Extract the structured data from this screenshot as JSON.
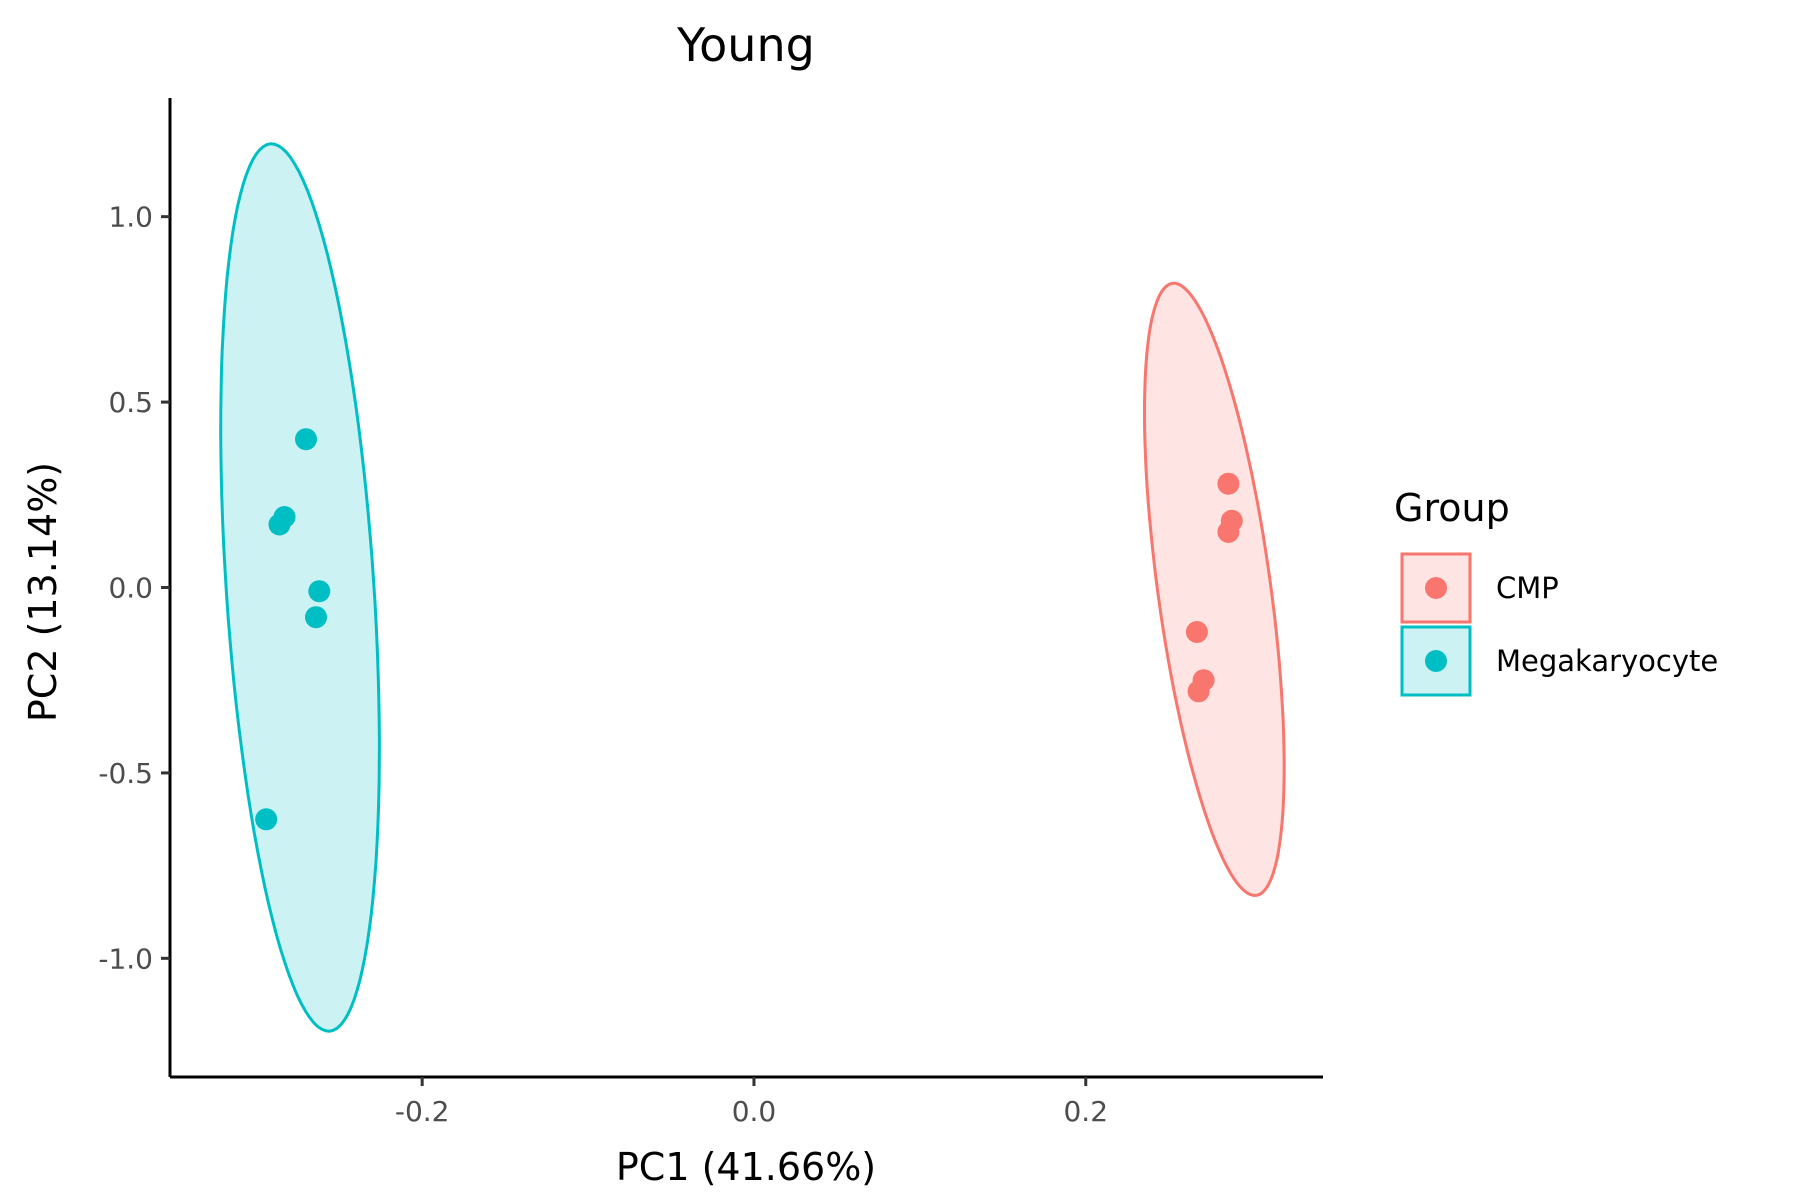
{
  "chart_data": {
    "type": "scatter",
    "title": "Young",
    "xlabel": "PC1 (41.66%)",
    "ylabel": "PC2 (13.14%)",
    "xlim": [
      -0.352,
      0.343
    ],
    "ylim": [
      -1.32,
      1.32
    ],
    "x_ticks": [
      -0.2,
      0.0,
      0.2
    ],
    "x_tick_labels": [
      "-0.2",
      "0.0",
      "0.2"
    ],
    "y_ticks": [
      1.0,
      0.5,
      0.0,
      -0.5,
      -1.0
    ],
    "y_tick_labels": [
      "1.0",
      "0.5",
      "0.0",
      "-0.5",
      "-1.0"
    ],
    "grid": false,
    "legend": {
      "title": "Group",
      "position": "right"
    },
    "series": [
      {
        "name": "CMP",
        "color": "#F8766D",
        "points": [
          {
            "x": 0.286,
            "y": 0.28
          },
          {
            "x": 0.288,
            "y": 0.18
          },
          {
            "x": 0.286,
            "y": 0.15
          },
          {
            "x": 0.267,
            "y": -0.12
          },
          {
            "x": 0.271,
            "y": -0.25
          },
          {
            "x": 0.268,
            "y": -0.28
          }
        ],
        "ellipse": {
          "cx": 0.2775,
          "cy": -0.005,
          "rx": 0.034,
          "ry": 0.833,
          "rotation_deg": 7.8
        }
      },
      {
        "name": "Megakaryocyte",
        "color": "#00BFC4",
        "points": [
          {
            "x": -0.27,
            "y": 0.4
          },
          {
            "x": -0.283,
            "y": 0.19
          },
          {
            "x": -0.286,
            "y": 0.17
          },
          {
            "x": -0.262,
            "y": -0.01
          },
          {
            "x": -0.264,
            "y": -0.08
          },
          {
            "x": -0.294,
            "y": -0.625
          }
        ],
        "ellipse": {
          "cx": -0.2736,
          "cy": 0.0,
          "rx": 0.0445,
          "ry": 1.199,
          "rotation_deg": 3.8
        }
      }
    ]
  }
}
